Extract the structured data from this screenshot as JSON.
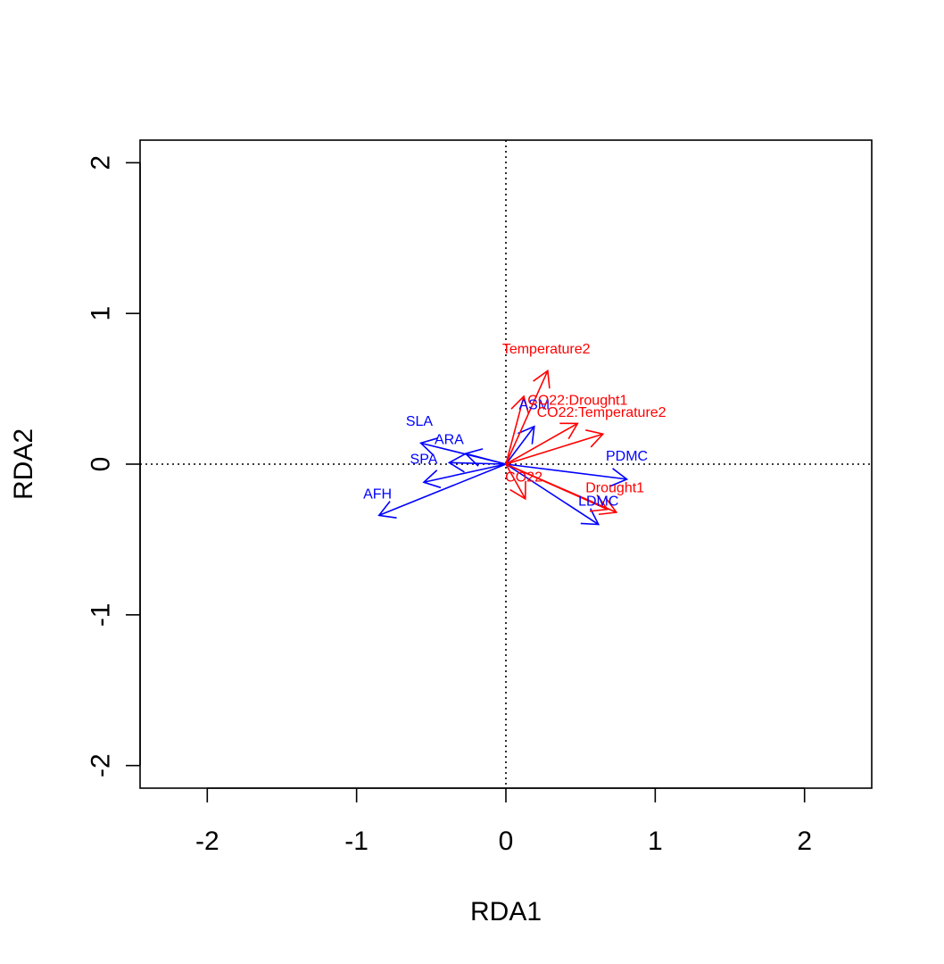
{
  "chart_data": {
    "type": "scatter",
    "subtype": "biplot",
    "title": "",
    "xlabel": "RDA1",
    "ylabel": "RDA2",
    "xlim": [
      -2.45,
      2.45
    ],
    "ylim": [
      -2.15,
      2.15
    ],
    "x_ticks": [
      -2,
      -1,
      0,
      1,
      2
    ],
    "y_ticks": [
      -2,
      -1,
      0,
      1,
      2
    ],
    "x_tick_labels": [
      "-2",
      "-1",
      "0",
      "1",
      "2"
    ],
    "y_tick_labels": [
      "-2",
      "-1",
      "0",
      "1",
      "2"
    ],
    "reference_lines": {
      "x": 0,
      "y": 0,
      "style": "dotted"
    },
    "colors": {
      "traits": "#0000ff",
      "predictors": "#ff0000"
    },
    "series": [
      {
        "group": "traits",
        "color": "#0000ff",
        "vectors": [
          {
            "label": "SLA",
            "x": -0.57,
            "y": 0.14,
            "label_x": -0.58,
            "label_y": 0.28
          },
          {
            "label": "ARA",
            "x": -0.27,
            "y": 0.07,
            "label_x": -0.38,
            "label_y": 0.16
          },
          {
            "label": "SPA",
            "x": -0.38,
            "y": 0.01,
            "label_x": -0.55,
            "label_y": 0.03
          },
          {
            "label": "AFH",
            "x": -0.85,
            "y": -0.34,
            "label_x": -0.86,
            "label_y": -0.2
          },
          {
            "label": "ASM",
            "x": 0.19,
            "y": 0.25,
            "label_x": 0.19,
            "label_y": 0.39
          },
          {
            "label": "PDMC",
            "x": 0.81,
            "y": -0.1,
            "label_x": 0.81,
            "label_y": 0.05
          },
          {
            "label": "LDMC",
            "x": 0.62,
            "y": -0.4,
            "label_x": 0.62,
            "label_y": -0.25
          },
          {
            "label": "",
            "x": -0.55,
            "y": -0.12
          }
        ]
      },
      {
        "group": "predictors",
        "color": "#ff0000",
        "vectors": [
          {
            "label": "Temperature2",
            "x": 0.28,
            "y": 0.62,
            "label_x": 0.27,
            "label_y": 0.76
          },
          {
            "label": "CO22:Drought1",
            "x": 0.12,
            "y": 0.45,
            "label_x": 0.48,
            "label_y": 0.42
          },
          {
            "label": "CO22:Temperature2",
            "x": 0.65,
            "y": 0.2,
            "label_x": 0.64,
            "label_y": 0.34
          },
          {
            "label": "",
            "x": 0.48,
            "y": 0.27
          },
          {
            "label": "CO22",
            "x": 0.13,
            "y": -0.23,
            "label_x": 0.12,
            "label_y": -0.09
          },
          {
            "label": "Drought1",
            "x": 0.74,
            "y": -0.32,
            "label_x": 0.73,
            "label_y": -0.16
          },
          {
            "label": "",
            "x": 0.68,
            "y": -0.3
          }
        ]
      }
    ]
  }
}
